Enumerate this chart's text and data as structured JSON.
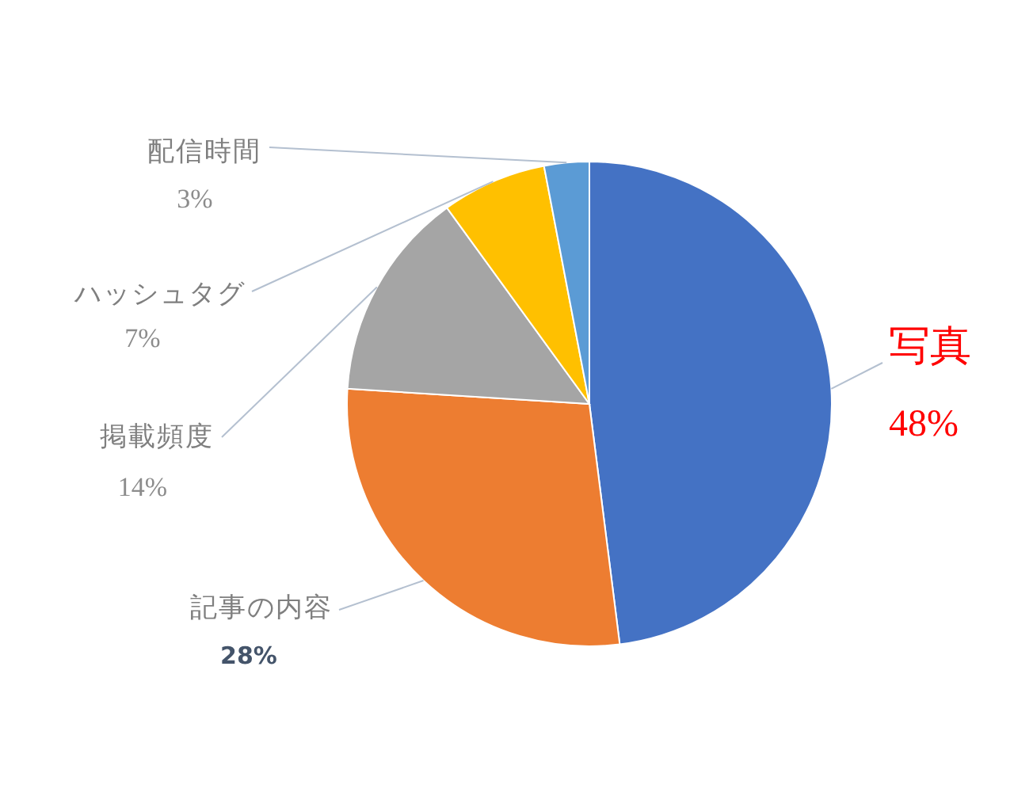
{
  "chart_data": {
    "type": "pie",
    "categories": [
      "写真",
      "記事の内容",
      "掲載頻度",
      "ハッシュタグ",
      "配信時間"
    ],
    "values": [
      48,
      28,
      14,
      7,
      3
    ],
    "colors": [
      "#4472c4",
      "#ed7d31",
      "#a5a5a5",
      "#ffc000",
      "#5b9bd5"
    ],
    "value_labels": [
      "48%",
      "28%",
      "14%",
      "7%",
      "3%"
    ]
  }
}
